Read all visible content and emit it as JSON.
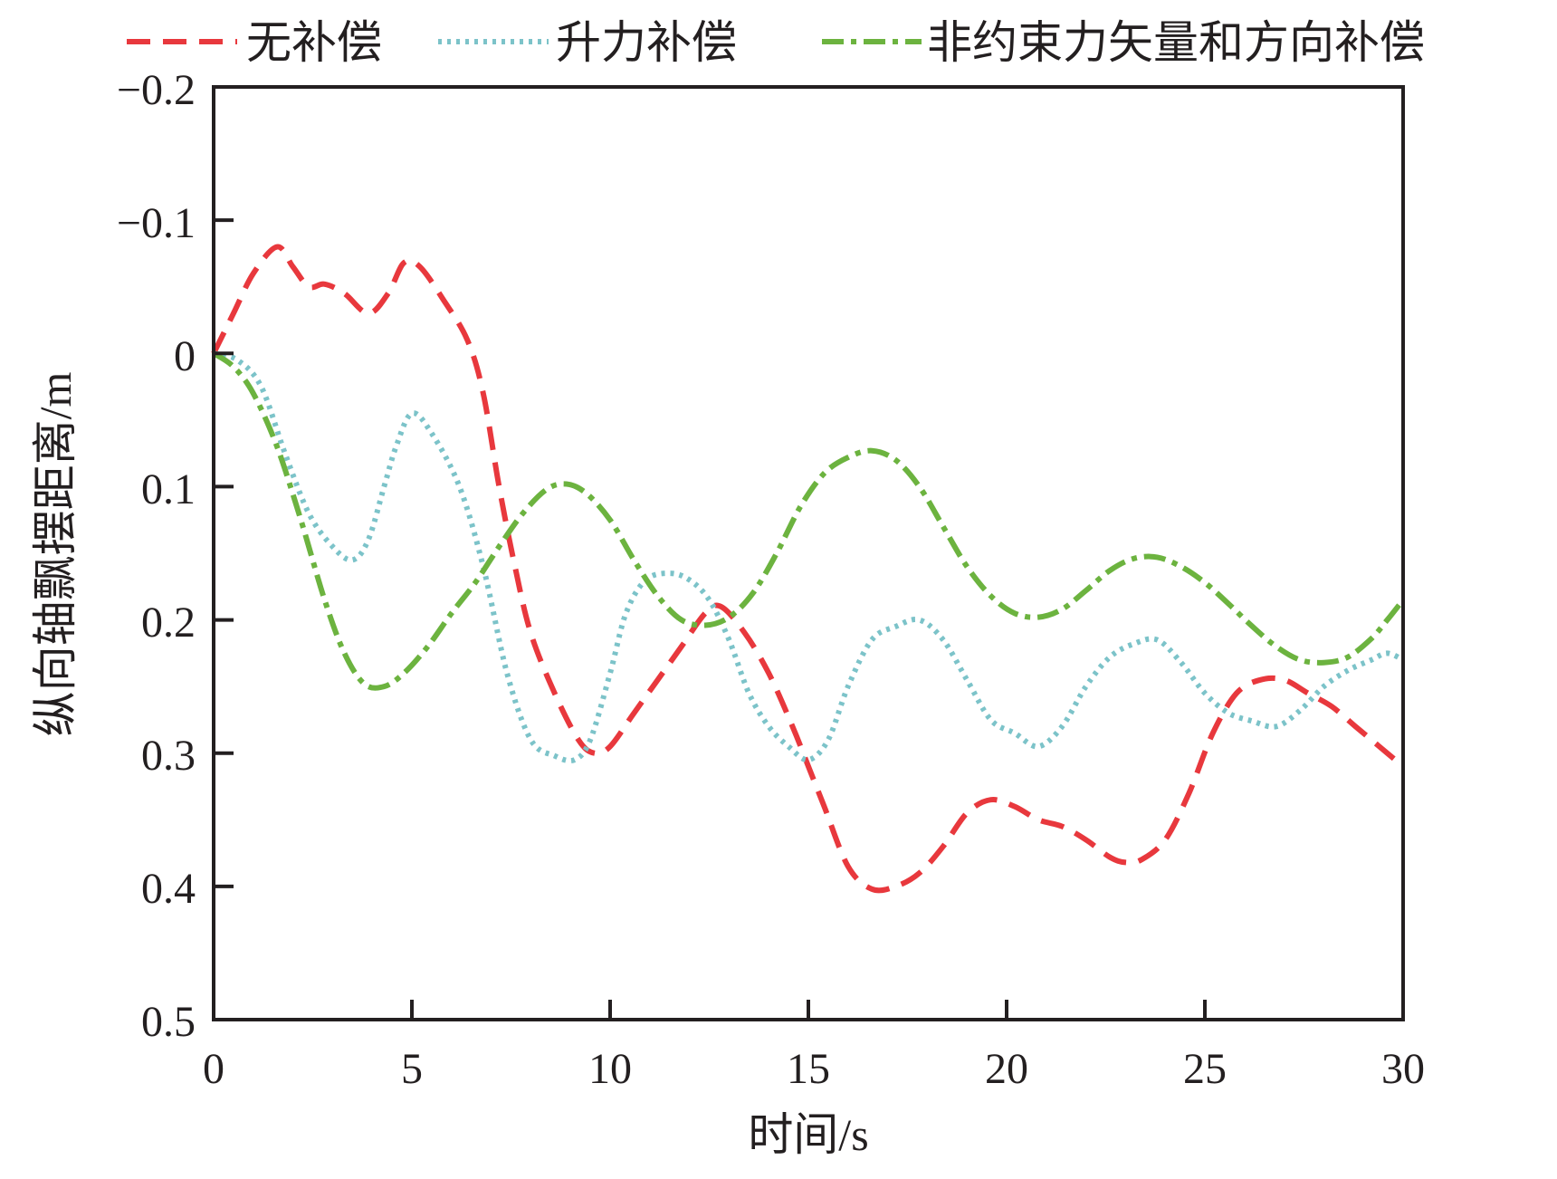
{
  "chart_data": {
    "type": "line",
    "xlabel": "时间/s",
    "ylabel": "纵向轴飘摆距离/m",
    "xlim": [
      0,
      30
    ],
    "ylim": [
      -0.2,
      0.5
    ],
    "y_inverted": true,
    "grid": false,
    "legend_position": "top",
    "x_ticks": [
      "0",
      "5",
      "10",
      "15",
      "20",
      "25",
      "30"
    ],
    "y_ticks": [
      "−0.2",
      "−0.1",
      "0",
      "0.1",
      "0.2",
      "0.3",
      "0.4",
      "0.5"
    ],
    "series": [
      {
        "name": "无补偿",
        "color": "#e8383d",
        "dash": "dashed",
        "points": [
          [
            0,
            0
          ],
          [
            0.5,
            -0.03
          ],
          [
            1,
            -0.06
          ],
          [
            1.6,
            -0.08
          ],
          [
            2,
            -0.065
          ],
          [
            2.4,
            -0.05
          ],
          [
            2.8,
            -0.052
          ],
          [
            3.3,
            -0.045
          ],
          [
            3.9,
            -0.03
          ],
          [
            4.4,
            -0.045
          ],
          [
            4.8,
            -0.068
          ],
          [
            5.2,
            -0.065
          ],
          [
            5.8,
            -0.04
          ],
          [
            6.4,
            -0.01
          ],
          [
            6.8,
            0.03
          ],
          [
            7.2,
            0.1
          ],
          [
            7.6,
            0.16
          ],
          [
            8,
            0.21
          ],
          [
            8.6,
            0.255
          ],
          [
            9.2,
            0.29
          ],
          [
            9.6,
            0.3
          ],
          [
            10,
            0.295
          ],
          [
            10.6,
            0.27
          ],
          [
            11.2,
            0.245
          ],
          [
            11.8,
            0.22
          ],
          [
            12.4,
            0.195
          ],
          [
            12.8,
            0.19
          ],
          [
            13.4,
            0.21
          ],
          [
            14,
            0.24
          ],
          [
            14.6,
            0.28
          ],
          [
            15,
            0.31
          ],
          [
            15.4,
            0.34
          ],
          [
            16,
            0.385
          ],
          [
            16.6,
            0.402
          ],
          [
            17.2,
            0.4
          ],
          [
            17.8,
            0.39
          ],
          [
            18.4,
            0.37
          ],
          [
            19,
            0.345
          ],
          [
            19.6,
            0.335
          ],
          [
            20.2,
            0.34
          ],
          [
            20.8,
            0.35
          ],
          [
            21.4,
            0.355
          ],
          [
            22,
            0.365
          ],
          [
            22.6,
            0.378
          ],
          [
            23,
            0.382
          ],
          [
            23.4,
            0.38
          ],
          [
            24,
            0.365
          ],
          [
            24.6,
            0.33
          ],
          [
            25.2,
            0.285
          ],
          [
            25.8,
            0.255
          ],
          [
            26.4,
            0.245
          ],
          [
            27,
            0.245
          ],
          [
            27.6,
            0.255
          ],
          [
            28.2,
            0.265
          ],
          [
            28.8,
            0.28
          ],
          [
            29.4,
            0.295
          ],
          [
            30,
            0.31
          ]
        ]
      },
      {
        "name": "升力补偿",
        "color": "#7cc3c9",
        "dash": "dotted",
        "points": [
          [
            0,
            0
          ],
          [
            0.6,
            0.005
          ],
          [
            1.2,
            0.025
          ],
          [
            1.8,
            0.075
          ],
          [
            2.4,
            0.12
          ],
          [
            3,
            0.145
          ],
          [
            3.5,
            0.155
          ],
          [
            3.9,
            0.14
          ],
          [
            4.3,
            0.1
          ],
          [
            4.6,
            0.07
          ],
          [
            5,
            0.045
          ],
          [
            5.5,
            0.06
          ],
          [
            6.2,
            0.1
          ],
          [
            6.8,
            0.16
          ],
          [
            7.4,
            0.24
          ],
          [
            8,
            0.29
          ],
          [
            8.6,
            0.302
          ],
          [
            9.1,
            0.305
          ],
          [
            9.5,
            0.29
          ],
          [
            10,
            0.24
          ],
          [
            10.4,
            0.195
          ],
          [
            10.9,
            0.17
          ],
          [
            11.5,
            0.165
          ],
          [
            12,
            0.17
          ],
          [
            12.5,
            0.185
          ],
          [
            13,
            0.215
          ],
          [
            13.5,
            0.255
          ],
          [
            14,
            0.28
          ],
          [
            14.5,
            0.295
          ],
          [
            15,
            0.305
          ],
          [
            15.5,
            0.29
          ],
          [
            16,
            0.25
          ],
          [
            16.6,
            0.215
          ],
          [
            17.2,
            0.205
          ],
          [
            17.8,
            0.2
          ],
          [
            18.4,
            0.215
          ],
          [
            19,
            0.245
          ],
          [
            19.6,
            0.275
          ],
          [
            20.2,
            0.285
          ],
          [
            20.8,
            0.295
          ],
          [
            21.4,
            0.28
          ],
          [
            22,
            0.25
          ],
          [
            22.6,
            0.228
          ],
          [
            23.2,
            0.218
          ],
          [
            23.8,
            0.215
          ],
          [
            24.4,
            0.232
          ],
          [
            25,
            0.255
          ],
          [
            25.6,
            0.27
          ],
          [
            26.2,
            0.276
          ],
          [
            26.8,
            0.28
          ],
          [
            27.4,
            0.268
          ],
          [
            28,
            0.25
          ],
          [
            28.6,
            0.238
          ],
          [
            29.2,
            0.23
          ],
          [
            29.6,
            0.225
          ],
          [
            30,
            0.23
          ]
        ]
      },
      {
        "name": "非约束力矢量和方向补偿",
        "color": "#6cb33f",
        "dash": "dashdot",
        "points": [
          [
            0,
            0
          ],
          [
            0.5,
            0.01
          ],
          [
            1,
            0.03
          ],
          [
            1.6,
            0.07
          ],
          [
            2.2,
            0.125
          ],
          [
            2.8,
            0.185
          ],
          [
            3.3,
            0.225
          ],
          [
            3.8,
            0.248
          ],
          [
            4.3,
            0.25
          ],
          [
            4.8,
            0.24
          ],
          [
            5.4,
            0.22
          ],
          [
            6,
            0.195
          ],
          [
            6.6,
            0.172
          ],
          [
            7.2,
            0.145
          ],
          [
            7.8,
            0.12
          ],
          [
            8.4,
            0.102
          ],
          [
            8.9,
            0.098
          ],
          [
            9.4,
            0.105
          ],
          [
            10,
            0.125
          ],
          [
            10.6,
            0.155
          ],
          [
            11.2,
            0.182
          ],
          [
            11.8,
            0.2
          ],
          [
            12.4,
            0.204
          ],
          [
            13,
            0.198
          ],
          [
            13.6,
            0.18
          ],
          [
            14.2,
            0.15
          ],
          [
            14.8,
            0.115
          ],
          [
            15.4,
            0.09
          ],
          [
            16,
            0.078
          ],
          [
            16.6,
            0.073
          ],
          [
            17.2,
            0.08
          ],
          [
            17.8,
            0.1
          ],
          [
            18.4,
            0.13
          ],
          [
            19,
            0.16
          ],
          [
            19.6,
            0.182
          ],
          [
            20.2,
            0.195
          ],
          [
            20.8,
            0.198
          ],
          [
            21.4,
            0.192
          ],
          [
            22,
            0.178
          ],
          [
            22.6,
            0.163
          ],
          [
            23.2,
            0.154
          ],
          [
            23.8,
            0.153
          ],
          [
            24.4,
            0.16
          ],
          [
            25,
            0.172
          ],
          [
            25.6,
            0.188
          ],
          [
            26.2,
            0.205
          ],
          [
            26.8,
            0.22
          ],
          [
            27.4,
            0.23
          ],
          [
            28,
            0.232
          ],
          [
            28.6,
            0.228
          ],
          [
            29.2,
            0.214
          ],
          [
            29.6,
            0.2
          ],
          [
            30,
            0.185
          ]
        ]
      }
    ]
  }
}
